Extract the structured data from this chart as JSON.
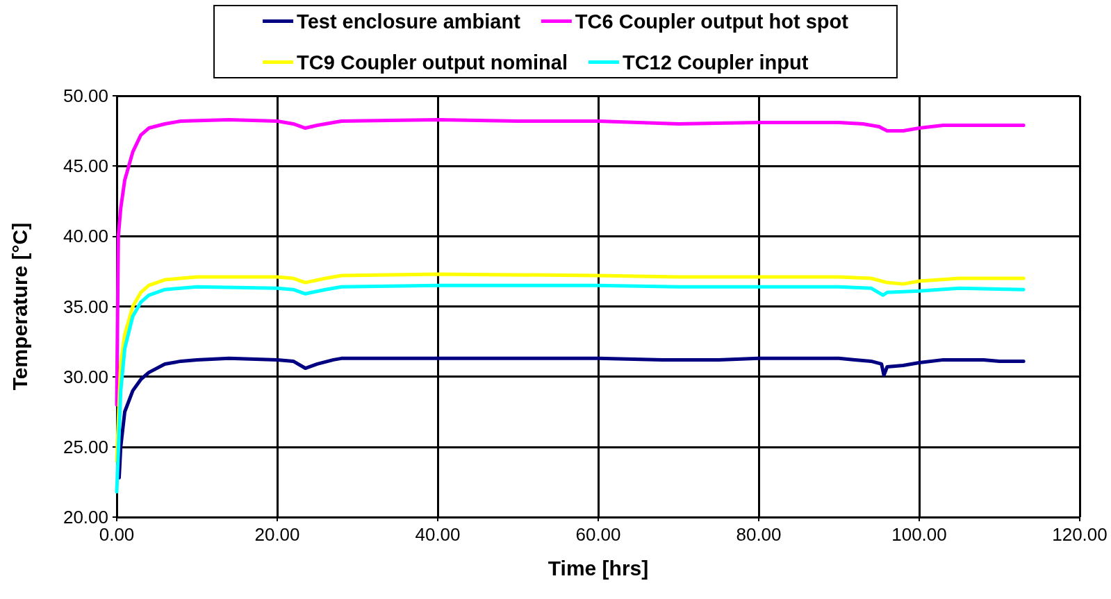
{
  "chart_data": {
    "type": "line",
    "xlabel": "Time [hrs]",
    "ylabel": "Temperature [°C]",
    "grid": true,
    "legend": "top",
    "marker": "none",
    "line_style": "solid",
    "xlim": [
      0,
      120
    ],
    "ylim": [
      20,
      50
    ],
    "xticks": [
      {
        "value": 0,
        "label": "0.00"
      },
      {
        "value": 20,
        "label": "20.00"
      },
      {
        "value": 40,
        "label": "40.00"
      },
      {
        "value": 60,
        "label": "60.00"
      },
      {
        "value": 80,
        "label": "80.00"
      },
      {
        "value": 100,
        "label": "100.00"
      },
      {
        "value": 120,
        "label": "120.00"
      }
    ],
    "yticks": [
      {
        "value": 20,
        "label": "20.00"
      },
      {
        "value": 25,
        "label": "25.00"
      },
      {
        "value": 30,
        "label": "30.00"
      },
      {
        "value": 35,
        "label": "35.00"
      },
      {
        "value": 40,
        "label": "40.00"
      },
      {
        "value": 45,
        "label": "45.00"
      },
      {
        "value": 50,
        "label": "50.00"
      }
    ],
    "series": [
      {
        "name": "Test enclosure ambiant",
        "color": "#000080",
        "x": [
          0.3,
          0.5,
          1,
          2,
          3,
          4,
          6,
          8,
          10,
          14,
          20,
          22,
          23.5,
          25,
          27,
          28,
          40,
          60,
          68,
          75,
          80,
          90,
          92,
          94,
          95.3,
          95.6,
          96,
          98,
          100,
          103,
          108,
          110,
          113
        ],
        "values": [
          22.8,
          25,
          27.5,
          29,
          29.8,
          30.3,
          30.9,
          31.1,
          31.2,
          31.3,
          31.2,
          31.1,
          30.6,
          30.9,
          31.2,
          31.3,
          31.3,
          31.3,
          31.2,
          31.2,
          31.3,
          31.3,
          31.2,
          31.1,
          30.9,
          30.1,
          30.7,
          30.8,
          31.0,
          31.2,
          31.2,
          31.1,
          31.1
        ]
      },
      {
        "name": "TC6 Coupler output hot spot",
        "color": "#ff00ff",
        "x": [
          0,
          0.2,
          0.5,
          1,
          2,
          3,
          4,
          6,
          8,
          14,
          20,
          22,
          23.5,
          25,
          28,
          40,
          50,
          60,
          70,
          80,
          90,
          93,
          95,
          96,
          98,
          100,
          103,
          113
        ],
        "values": [
          28,
          40,
          42,
          44,
          46,
          47.2,
          47.7,
          48.0,
          48.2,
          48.3,
          48.2,
          48.0,
          47.7,
          47.9,
          48.2,
          48.3,
          48.2,
          48.2,
          48.0,
          48.1,
          48.1,
          48.0,
          47.8,
          47.5,
          47.5,
          47.7,
          47.9,
          47.9
        ]
      },
      {
        "name": "TC9 Coupler output nominal",
        "color": "#ffff00",
        "x": [
          0,
          0.5,
          1,
          2,
          3,
          4,
          6,
          10,
          20,
          22,
          23.5,
          26,
          28,
          40,
          60,
          70,
          90,
          94,
          96,
          98,
          100,
          105,
          113
        ],
        "values": [
          24,
          31,
          33,
          35,
          36,
          36.5,
          36.9,
          37.1,
          37.1,
          37.0,
          36.7,
          37.0,
          37.2,
          37.3,
          37.2,
          37.1,
          37.1,
          37.0,
          36.7,
          36.6,
          36.8,
          37.0,
          37.0
        ]
      },
      {
        "name": "TC12 Coupler input",
        "color": "#00ffff",
        "x": [
          0,
          0.5,
          1,
          2,
          3,
          4,
          6,
          10,
          20,
          22,
          23.5,
          26,
          28,
          40,
          60,
          70,
          90,
          94,
          95.5,
          96,
          100,
          105,
          113
        ],
        "values": [
          21.8,
          29,
          32,
          34.3,
          35.3,
          35.8,
          36.2,
          36.4,
          36.3,
          36.2,
          35.9,
          36.2,
          36.4,
          36.5,
          36.5,
          36.4,
          36.4,
          36.3,
          35.8,
          36.0,
          36.1,
          36.3,
          36.2
        ]
      }
    ]
  }
}
